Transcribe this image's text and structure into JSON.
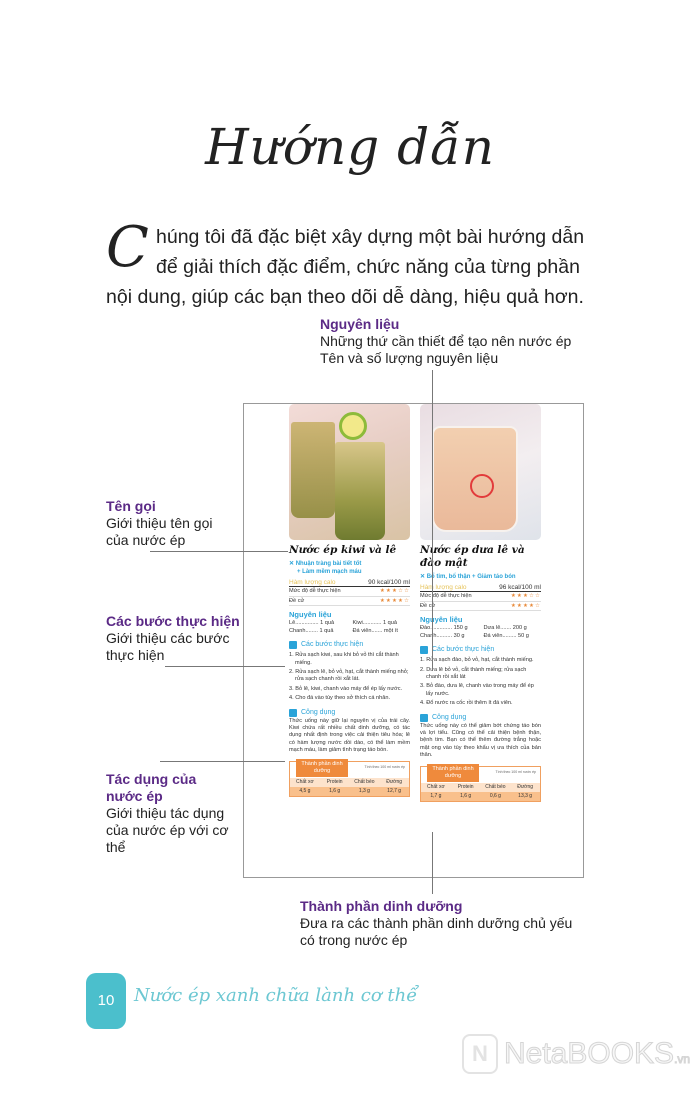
{
  "title": "Hướng dẫn",
  "intro": {
    "dropcap": "C",
    "text": "húng tôi đã đặc biệt xây dựng một bài hướng dẫn để giải thích đặc điểm, chức năng của từng phần nội dung, giúp các bạn theo dõi dễ dàng, hiệu quả hơn."
  },
  "annotations": {
    "ingredients": {
      "title": "Nguyên liệu",
      "line1": "Những thứ cần thiết để tạo nên nước ép",
      "line2": "Tên và số lượng nguyên liệu"
    },
    "name": {
      "title": "Tên gọi",
      "desc": "Giới thiệu tên gọi của nước ép"
    },
    "steps": {
      "title": "Các bước thực hiện",
      "desc": "Giới thiệu các bước thực hiện"
    },
    "effects": {
      "title": "Tác dụng của nước ép",
      "desc": "Giới thiệu tác dụng của nước ép với cơ thể"
    },
    "nutrition": {
      "title": "Thành phần dinh dưỡng",
      "desc": "Đưa ra các thành phần dinh dưỡng chủ yếu có trong nước ép"
    }
  },
  "labels": {
    "calories": "Hàm lượng calo",
    "difficulty": "Mức độ dễ thực hiện",
    "equipment": "Đề cử",
    "ingredients": "Nguyên liệu",
    "steps": "Các bước thực hiện",
    "effects": "Công dụng",
    "nutrition": "Thành phần dinh dưỡng",
    "nutrition_note": "Tính theo 100 ml nước ép",
    "nut_headers": [
      "Chất xơ",
      "Protein",
      "Chất béo",
      "Đường"
    ]
  },
  "recipes": [
    {
      "name": "Nước ép kiwi và lê",
      "benefit1": "✕ Nhuận tràng bài tiết tốt",
      "benefit2": "+ Làm mềm mạch máu",
      "calories": "90 kcal/100 ml",
      "difficulty": "★★★☆☆",
      "difficulty_value": 3,
      "equipment": "★★★★☆",
      "equipment_value": 4,
      "ingredients": [
        "Lê............... 1 quả",
        "Kiwi............ 1 quả",
        "Chanh........ 1 quả",
        "Đá viên....... một ít"
      ],
      "steps": [
        "1. Rửa sạch kiwi, sau khi bỏ vỏ thì cắt thành miếng.",
        "2. Rửa sạch lê, bỏ vỏ, hạt, cắt thành miếng nhỏ; rửa sạch chanh rồi xắt lát.",
        "3. Bỏ lê, kiwi, chanh vào máy để ép lấy nước.",
        "4. Cho đá vào tùy theo sở thích cá nhân."
      ],
      "effects": "Thức uống này giữ lại nguyên vị của trái cây. Kiwi chứa rất nhiều chất dinh dưỡng, có tác dụng nhất định trong việc cải thiện tiêu hóa; lê có hàm lượng nước dồi dào, có thể làm mềm mạch máu, làm giảm tình trạng táo bón.",
      "nutrition": [
        "4,5 g",
        "1,6 g",
        "1,3 g",
        "12,7 g"
      ]
    },
    {
      "name": "Nước ép dưa lê và đào mật",
      "benefit1": "✕ Bổ tim, bổ thận + Giảm táo bón",
      "benefit2": "",
      "calories": "96 kcal/100 ml",
      "difficulty": "★★★☆☆",
      "difficulty_value": 3,
      "equipment": "★★★★☆",
      "equipment_value": 4,
      "ingredients": [
        "Đào.............. 150 g",
        "Dưa lê....... 200 g",
        "Chanh.......... 30 g",
        "Đá viên......... 50 g"
      ],
      "steps": [
        "1. Rửa sạch đào, bỏ vỏ, hạt, cắt thành miếng.",
        "2. Dưa lê bỏ vỏ, cắt thành miếng; rửa sạch chanh rồi xắt lát",
        "3. Bỏ đào, dưa lê, chanh vào trong máy để ép lấy nước.",
        "4. Đổ nước ra cốc rồi thêm ít đá viên."
      ],
      "effects": "Thức uống này có thể giảm bớt chứng táo bón và lợi tiểu. Cũng có thể cải thiện bệnh thận, bệnh tim. Bạn có thể thêm đường trắng hoặc mật ong vào tùy theo khẩu vị ưa thích của bản thân.",
      "nutrition": [
        "1,7 g",
        "1,6 g",
        "0,6 g",
        "13,3 g"
      ]
    }
  ],
  "footer": {
    "page": "10",
    "title": "Nước ép xanh chữa lành cơ thể"
  },
  "watermark": {
    "brand": "NetaBOOKS",
    "suffix": ".vn"
  },
  "colors": {
    "annotation_title": "#5b2a86",
    "accent_blue": "#2aa3d8",
    "nutrition_orange": "#ef8a3c",
    "footer_teal": "#4bbfcc"
  }
}
